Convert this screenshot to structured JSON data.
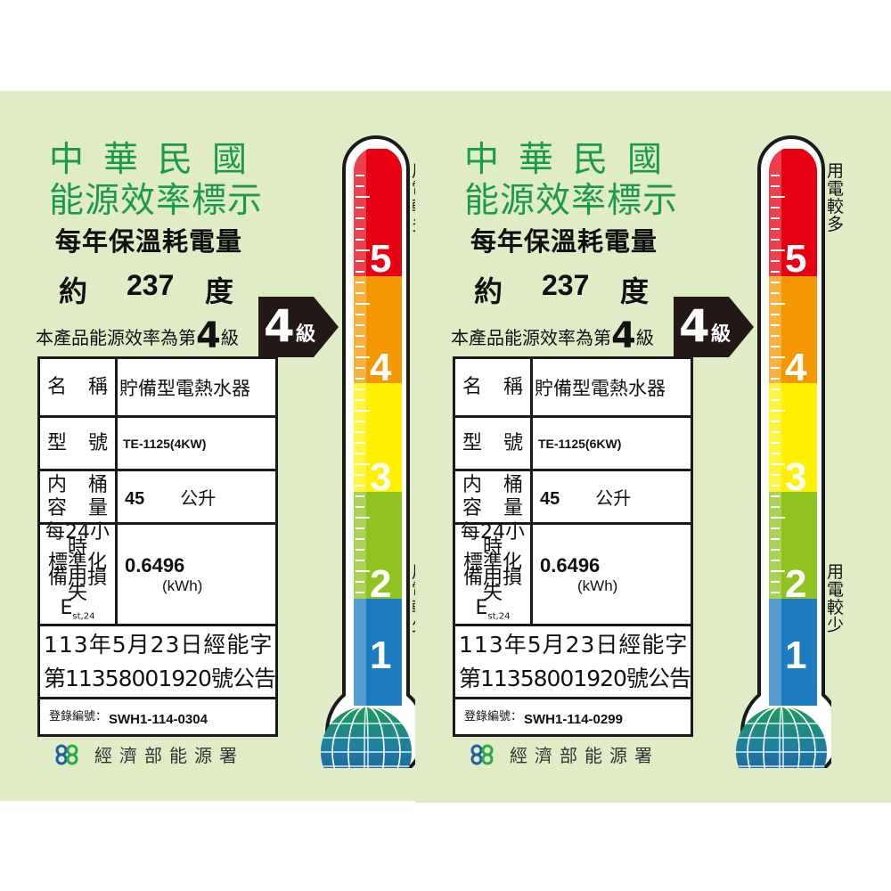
{
  "labels": [
    {
      "title_line1": "中華民國",
      "title_line2": "能源效率標示",
      "subtitle": "每年保溫耗電量",
      "approx_prefix": "約",
      "consumption": "237",
      "consumption_unit": "度",
      "grade_sentence_prefix": "本產品能源效率為第",
      "grade": "4",
      "grade_suffix": "級",
      "table": {
        "name_label_a": "名",
        "name_label_b": "稱",
        "name_value": "貯備型電熱水器",
        "model_label_a": "型",
        "model_label_b": "號",
        "model_value": "TE-1125(4KW)",
        "capacity_label_1a": "内",
        "capacity_label_1b": "桶",
        "capacity_label_2a": "容",
        "capacity_label_2b": "量",
        "capacity_value": "45",
        "capacity_unit": "公升",
        "loss_label_1": "每24小時",
        "loss_label_2": "標準化",
        "loss_label_3": "備用損失",
        "loss_label_sym": "E",
        "loss_label_sub": "st,24",
        "loss_value": "0.6496",
        "loss_unit": "(kWh)",
        "announce_line1": "113年5月23日經能字",
        "announce_line2": "第11358001920號公告",
        "reg_label": "登錄編號：",
        "reg_value": "SWH1-114-0304"
      },
      "scale": [
        "5",
        "4",
        "3",
        "2",
        "1"
      ],
      "side_top": "用電較多",
      "side_bottom": "用電較少",
      "agency": "經濟部能源署"
    },
    {
      "title_line1": "中華民國",
      "title_line2": "能源效率標示",
      "subtitle": "每年保溫耗電量",
      "approx_prefix": "約",
      "consumption": "237",
      "consumption_unit": "度",
      "grade_sentence_prefix": "本產品能源效率為第",
      "grade": "4",
      "grade_suffix": "級",
      "table": {
        "name_label_a": "名",
        "name_label_b": "稱",
        "name_value": "貯備型電熱水器",
        "model_label_a": "型",
        "model_label_b": "號",
        "model_value": "TE-1125(6KW)",
        "capacity_label_1a": "内",
        "capacity_label_1b": "桶",
        "capacity_label_2a": "容",
        "capacity_label_2b": "量",
        "capacity_value": "45",
        "capacity_unit": "公升",
        "loss_label_1": "每24小時",
        "loss_label_2": "標準化",
        "loss_label_3": "備用損失",
        "loss_label_sym": "E",
        "loss_label_sub": "st,24",
        "loss_value": "0.6496",
        "loss_unit": "(kWh)",
        "announce_line1": "113年5月23日經能字",
        "announce_line2": "第11358001920號公告",
        "reg_label": "登錄編號：",
        "reg_value": "SWH1-114-0299"
      },
      "scale": [
        "5",
        "4",
        "3",
        "2",
        "1"
      ],
      "side_top": "用電較多",
      "side_bottom": "用電較少",
      "agency": "經濟部能源署"
    }
  ],
  "colors": {
    "background": "#e0ecc6",
    "title_green": "#1b9a48",
    "grade5": "#e60012",
    "grade4": "#f39800",
    "grade3": "#fff100",
    "grade2": "#8fc31f",
    "grade1": "#1d7cc0"
  },
  "icons": {
    "logo": "energy-administration-logo",
    "globe": "globe-icon"
  }
}
